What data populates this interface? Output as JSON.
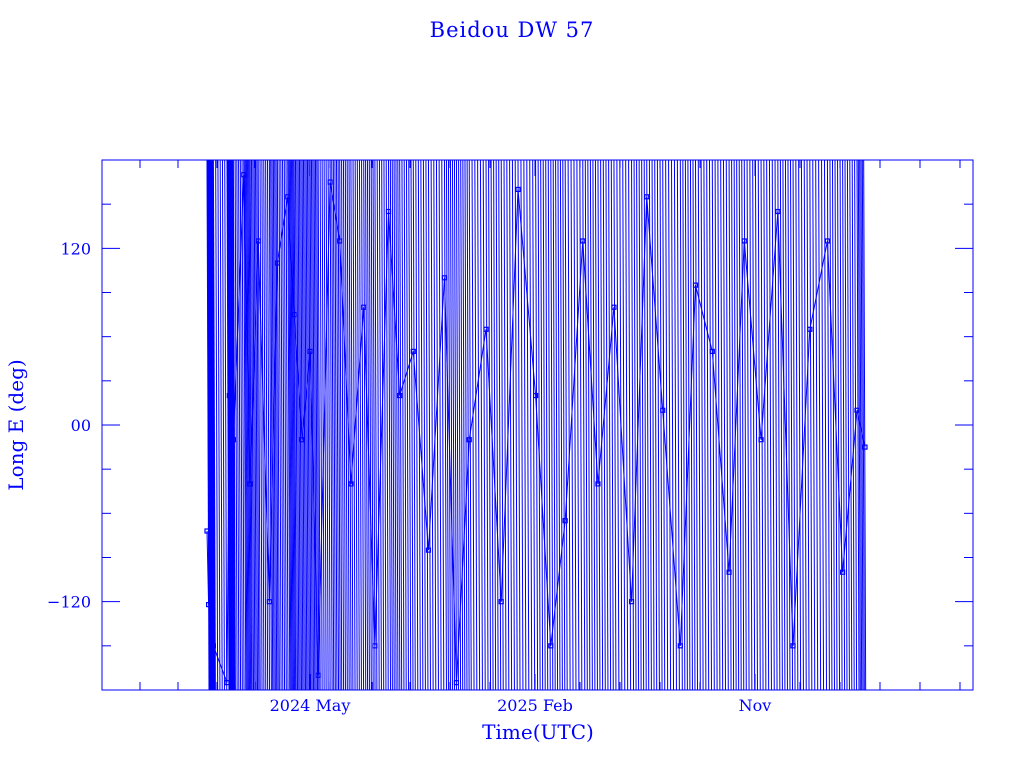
{
  "chart_data": {
    "type": "scatter",
    "title": "Beidou DW 57",
    "xlabel": "Time(UTC)",
    "ylabel": "Long E (deg)",
    "x_tick_labels": [
      "2024 May",
      "2025 Feb",
      "Nov"
    ],
    "y_tick_labels": [
      "120",
      "00",
      "−120"
    ],
    "y_tick_values": [
      120,
      0,
      -120
    ],
    "ylim": [
      -180,
      180
    ],
    "grid": false,
    "legend": "none",
    "color": "#0000ff",
    "series": [
      {
        "x": [
          "2023-12-18",
          "2023-12-20",
          "2023-12-23",
          "2023-12-26",
          "2024-01-12",
          "2024-01-15",
          "2024-01-20",
          "2024-02-02",
          "2024-02-10",
          "2024-02-20",
          "2024-03-05",
          "2024-03-15",
          "2024-03-28",
          "2024-04-05",
          "2024-04-15",
          "2024-04-25",
          "2024-05-05",
          "2024-05-20",
          "2024-06-01",
          "2024-06-15",
          "2024-07-01",
          "2024-07-15",
          "2024-08-01",
          "2024-08-15",
          "2024-09-01",
          "2024-09-20",
          "2024-10-10",
          "2024-10-25",
          "2024-11-10",
          "2024-12-01",
          "2024-12-20",
          "2025-01-10",
          "2025-02-01",
          "2025-02-20",
          "2025-03-10",
          "2025-04-01",
          "2025-04-20",
          "2025-05-10",
          "2025-06-01",
          "2025-06-20",
          "2025-07-10",
          "2025-08-01",
          "2025-08-20",
          "2025-09-10",
          "2025-10-01",
          "2025-10-20",
          "2025-11-10",
          "2025-12-01",
          "2025-12-20",
          "2026-01-10",
          "2026-02-01",
          "2026-02-20",
          "2026-03-10",
          "2026-03-20"
        ],
        "y": [
          -72,
          -122,
          -85,
          -150,
          -175,
          20,
          -10,
          170,
          -40,
          125,
          -120,
          110,
          155,
          75,
          -10,
          50,
          -170,
          165,
          125,
          -40,
          80,
          -150,
          145,
          20,
          50,
          -85,
          100,
          -175,
          -10,
          65,
          -120,
          160,
          20,
          -150,
          -65,
          125,
          -40,
          80,
          -120,
          155,
          10,
          -150,
          95,
          50,
          -100,
          125,
          -10,
          145,
          -150,
          65,
          125,
          -100,
          10,
          -15
        ]
      }
    ]
  }
}
